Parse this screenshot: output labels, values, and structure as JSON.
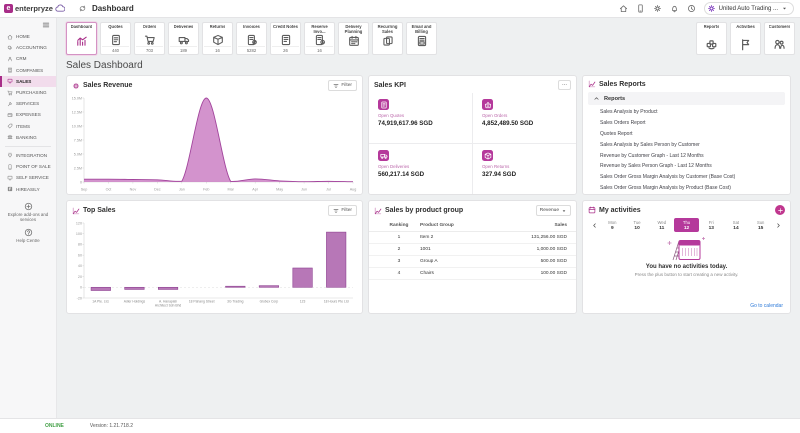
{
  "topbar": {
    "logo_mark": "e",
    "logo_text": "enterpryze",
    "logo_cloud_icon": "cloud-icon",
    "sync_icon": "sync-icon",
    "page_title": "Dashboard",
    "icons": [
      "home-icon",
      "mobile-icon",
      "gear-icon",
      "bell-icon",
      "clock-icon"
    ],
    "company": "United Auto Trading ...",
    "company_avatar_icon": "gear-icon",
    "company_caret_icon": "caret-down-icon"
  },
  "sidebar": {
    "menu_icon": "hamburger-icon",
    "main_items": [
      {
        "label": "HOME",
        "icon": "home-icon",
        "active": false
      },
      {
        "label": "ACCOUNTING",
        "icon": "coins-icon",
        "active": false
      },
      {
        "label": "CRM",
        "icon": "person-icon",
        "active": false
      },
      {
        "label": "COMPANIES",
        "icon": "building-icon",
        "active": false
      },
      {
        "label": "SALES",
        "icon": "monitor-icon",
        "active": true
      },
      {
        "label": "PURCHASING",
        "icon": "cart-icon",
        "active": false
      },
      {
        "label": "SERVICES",
        "icon": "wrench-icon",
        "active": false
      },
      {
        "label": "EXPENSES",
        "icon": "wallet-icon",
        "active": false
      },
      {
        "label": "ITEMS",
        "icon": "tag-icon",
        "active": false
      },
      {
        "label": "BANKING",
        "icon": "bank-icon",
        "active": false
      }
    ],
    "secondary_items": [
      {
        "label": "INTEGRATION",
        "icon": "plug-icon",
        "active": false
      },
      {
        "label": "POINT OF SALE",
        "icon": "mobile-icon",
        "active": false
      },
      {
        "label": "SELF SERVICE",
        "icon": "monitor-icon",
        "active": false
      },
      {
        "label": "HIREASILY",
        "icon": "hireasily-icon",
        "active": false
      }
    ],
    "explore_label": "Explore add-ons and services",
    "explore_icon": "plus-circle-icon",
    "help_label": "Help Centre",
    "help_icon": "question-circle-icon"
  },
  "cards": {
    "left": [
      {
        "label": "Dashboard",
        "icon": "chart-icon",
        "count": "",
        "active": true
      },
      {
        "label": "Quotes",
        "icon": "quote-icon",
        "count": "440",
        "active": false
      },
      {
        "label": "Orders",
        "icon": "cart-icon",
        "count": "703",
        "active": false
      },
      {
        "label": "Deliveries",
        "icon": "truck-icon",
        "count": "189",
        "active": false
      },
      {
        "label": "Returns",
        "icon": "box-icon",
        "count": "16",
        "active": false
      },
      {
        "label": "Invoices",
        "icon": "invoice-icon",
        "count": "5282",
        "active": false
      },
      {
        "label": "Credit Notes",
        "icon": "credit-note-icon",
        "count": "26",
        "active": false
      },
      {
        "label": "Reserve Invo...",
        "icon": "reserve-invoice-icon",
        "count": "16",
        "active": false
      },
      {
        "label": "Delivery Planning",
        "icon": "calendar-plan-icon",
        "count": "",
        "active": false
      },
      {
        "label": "Recurring Sales",
        "icon": "recurring-icon",
        "count": "",
        "active": false
      },
      {
        "label": "Email and Billing",
        "icon": "email-icon",
        "count": "",
        "active": false
      }
    ],
    "right": [
      {
        "label": "Reports",
        "icon": "puzzle-icon"
      },
      {
        "label": "Activities",
        "icon": "flag-icon"
      },
      {
        "label": "Customers",
        "icon": "customers-icon"
      }
    ]
  },
  "main": {
    "title": "Sales Dashboard"
  },
  "panels": {
    "sales_revenue": {
      "title": "Sales Revenue",
      "title_icon": "gear-pink-icon",
      "filter_label": "Filter",
      "filter_icon": "filter-icon"
    },
    "sales_kpi": {
      "title": "Sales KPI",
      "menu_label": "...",
      "items": [
        {
          "label": "Open Quotes",
          "value": "74,919,617.96 SGD",
          "icon": "quote-icon"
        },
        {
          "label": "Open Orders",
          "value": "4,852,489.50 SGD",
          "icon": "basket-icon"
        },
        {
          "label": "Open Deliveries",
          "value": "560,217.14 SGD",
          "icon": "truck-icon"
        },
        {
          "label": "Open Returns",
          "value": "327.94 SGD",
          "icon": "box-icon"
        }
      ]
    },
    "sales_reports": {
      "title": "Sales Reports",
      "title_icon": "chart-line-icon",
      "group_label": "Reports",
      "group_icon": "chevron-up-icon",
      "items": [
        "Sales Analysis by Product",
        "Sales Orders Report",
        "Quotes Report",
        "Sales Analysis by Sales Person by Customer",
        "Revenue by Customer Graph - Last 12 Months",
        "Revenue by Sales Person Graph - Last 12 Months",
        "Sales Order Gross Margin Analysis by Customer (Base Cost)",
        "Sales Order Gross Margin Analysis by Product (Base Cost)"
      ]
    },
    "top_sales": {
      "title": "Top Sales",
      "title_icon": "chart-line-icon",
      "filter_label": "Filter",
      "filter_icon": "filter-icon"
    },
    "product_group": {
      "title": "Sales by product group",
      "title_icon": "chart-line-icon",
      "dropdown_label": "Revenue",
      "columns": [
        "Ranking",
        "Product Group",
        "Sales"
      ],
      "rows": [
        [
          "1",
          "Item 2",
          "131,256.00 SGD"
        ],
        [
          "2",
          "1001",
          "1,000.00 SGD"
        ],
        [
          "3",
          "Group A",
          "500.00 SGD"
        ],
        [
          "4",
          "Chairs",
          "100.00 SGD"
        ]
      ]
    },
    "activities": {
      "title": "My activities",
      "title_icon": "calendar-icon",
      "plus_icon": "plus-icon",
      "days": [
        {
          "name": "Mon",
          "num": "9",
          "selected": false
        },
        {
          "name": "Tue",
          "num": "10",
          "selected": false
        },
        {
          "name": "Wed",
          "num": "11",
          "selected": false
        },
        {
          "name": "Thu",
          "num": "12",
          "selected": true
        },
        {
          "name": "Fri",
          "num": "13",
          "selected": false
        },
        {
          "name": "Sat",
          "num": "14",
          "selected": false
        },
        {
          "name": "Sun",
          "num": "15",
          "selected": false
        }
      ],
      "empty_title": "You have no activities today.",
      "empty_sub": "Press the plus button to start creating a new activity.",
      "link_label": "Go to calendar"
    }
  },
  "chart_data": [
    {
      "type": "area",
      "title": "Sales Revenue",
      "x": [
        "Sep",
        "Oct",
        "Nov",
        "Dec",
        "Jan",
        "Feb",
        "Mar",
        "Apr",
        "May",
        "Jun",
        "Jul",
        "Aug"
      ],
      "values_millions": [
        0.5,
        0.5,
        0.45,
        0.4,
        0.15,
        15.0,
        0.1,
        0.55,
        0.2,
        0.05,
        0.12,
        0.05
      ],
      "ylim": [
        0,
        15
      ],
      "yticks": [
        0,
        2.5,
        5,
        7.5,
        10,
        12.5,
        15
      ],
      "ytick_labels": [
        "0",
        "2.5M",
        "5.0M",
        "7.5M",
        "10.0M",
        "12.5M",
        "15.0M"
      ],
      "grid": false,
      "legend": "none"
    },
    {
      "type": "bar",
      "title": "Top Sales",
      "categories": [
        "1A Pte. Ltd.",
        "Adler Holdings",
        "A. Hanapiah Architect Sdn Bhd",
        "18 Pahang Street",
        "3G Trading",
        "Globex Corp",
        "123",
        "18 Hours Pte Ltd"
      ],
      "values": [
        -6,
        -4,
        -4,
        0,
        2,
        3,
        36,
        103
      ],
      "ylim": [
        -20,
        120
      ],
      "yticks": [
        -20,
        0,
        20,
        40,
        60,
        80,
        100,
        120
      ],
      "grid": false,
      "legend": "none"
    }
  ],
  "footer": {
    "online_label": "ONLINE",
    "version": "Version: 1.21.718.2"
  },
  "colors": {
    "brand": "#a82d88",
    "kpi_icon_bg": "#b5399b",
    "area_fill": "#c878c0",
    "area_stroke": "#a2449c",
    "bar_fill": "#b777b7",
    "bar_stroke": "#8d4090",
    "link": "#2f7bd9",
    "online": "#43a047",
    "day_selected": "#b5399b"
  }
}
